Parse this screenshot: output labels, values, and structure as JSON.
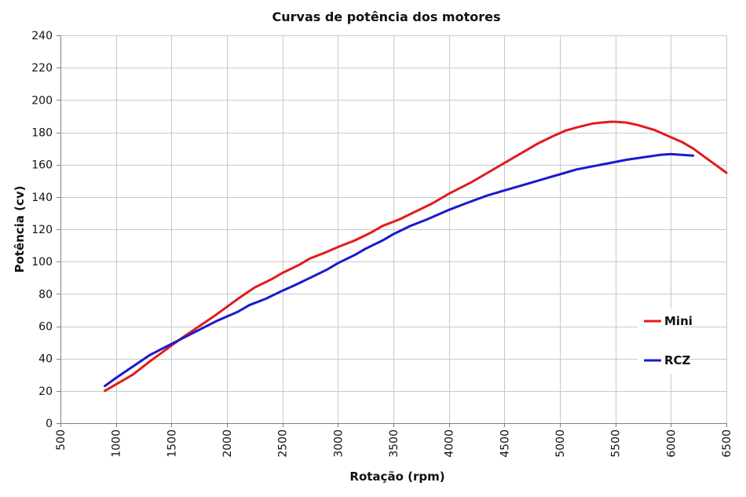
{
  "chart_data": {
    "type": "line",
    "title": "Curvas de potência dos motores",
    "xlabel": "Rotação (rpm)",
    "ylabel": "Potência (cv)",
    "xlim": [
      500,
      6500
    ],
    "ylim": [
      0,
      240
    ],
    "x_ticks": [
      "500",
      "1000",
      "1500",
      "2000",
      "2500",
      "3000",
      "3500",
      "4000",
      "4500",
      "5000",
      "5500",
      "6000",
      "6500"
    ],
    "y_ticks": [
      "0",
      "20",
      "40",
      "60",
      "80",
      "100",
      "120",
      "140",
      "160",
      "180",
      "200",
      "220",
      "240"
    ],
    "grid": true,
    "legend_position": "right",
    "series": [
      {
        "name": "Mini",
        "color": "#e41a1c",
        "points": [
          [
            900,
            20
          ],
          [
            1000,
            24
          ],
          [
            1150,
            30
          ],
          [
            1300,
            38
          ],
          [
            1500,
            48
          ],
          [
            1600,
            53
          ],
          [
            1750,
            60
          ],
          [
            1900,
            67
          ],
          [
            2000,
            72
          ],
          [
            2100,
            77
          ],
          [
            2250,
            84
          ],
          [
            2400,
            89
          ],
          [
            2500,
            93
          ],
          [
            2650,
            98
          ],
          [
            2750,
            102
          ],
          [
            2900,
            106
          ],
          [
            3000,
            109
          ],
          [
            3150,
            113
          ],
          [
            3300,
            118
          ],
          [
            3400,
            122
          ],
          [
            3550,
            126
          ],
          [
            3700,
            131
          ],
          [
            3850,
            136
          ],
          [
            4000,
            142
          ],
          [
            4200,
            149
          ],
          [
            4350,
            155
          ],
          [
            4500,
            161
          ],
          [
            4650,
            167
          ],
          [
            4800,
            173
          ],
          [
            4950,
            178
          ],
          [
            5050,
            181
          ],
          [
            5150,
            183
          ],
          [
            5300,
            185.5
          ],
          [
            5450,
            186.5
          ],
          [
            5500,
            186.5
          ],
          [
            5600,
            186
          ],
          [
            5700,
            184.5
          ],
          [
            5850,
            181.5
          ],
          [
            6000,
            177
          ],
          [
            6100,
            174
          ],
          [
            6200,
            170
          ],
          [
            6300,
            165
          ],
          [
            6400,
            160
          ],
          [
            6500,
            155
          ]
        ]
      },
      {
        "name": "RCZ",
        "color": "#1a1acd",
        "points": [
          [
            900,
            23
          ],
          [
            1000,
            28
          ],
          [
            1150,
            35
          ],
          [
            1300,
            42
          ],
          [
            1500,
            49
          ],
          [
            1700,
            56
          ],
          [
            1900,
            63
          ],
          [
            2000,
            66
          ],
          [
            2100,
            69
          ],
          [
            2200,
            73
          ],
          [
            2350,
            77
          ],
          [
            2500,
            82
          ],
          [
            2600,
            85
          ],
          [
            2750,
            90
          ],
          [
            2900,
            95
          ],
          [
            3000,
            99
          ],
          [
            3150,
            104
          ],
          [
            3250,
            108
          ],
          [
            3400,
            113
          ],
          [
            3500,
            117
          ],
          [
            3650,
            122
          ],
          [
            3800,
            126
          ],
          [
            4000,
            132
          ],
          [
            4150,
            136
          ],
          [
            4350,
            141
          ],
          [
            4500,
            144
          ],
          [
            4650,
            147
          ],
          [
            4750,
            149
          ],
          [
            4900,
            152
          ],
          [
            5000,
            154
          ],
          [
            5150,
            157
          ],
          [
            5300,
            159
          ],
          [
            5450,
            161
          ],
          [
            5600,
            163
          ],
          [
            5750,
            164.5
          ],
          [
            5900,
            166
          ],
          [
            6000,
            166.5
          ],
          [
            6100,
            166
          ],
          [
            6200,
            165.5
          ]
        ]
      }
    ]
  }
}
